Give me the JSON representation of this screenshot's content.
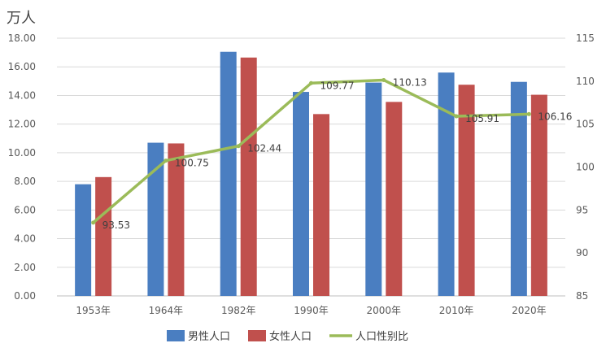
{
  "chart_data": {
    "type": "bar",
    "title": "",
    "unit_label": "万人",
    "categories": [
      "1953年",
      "1964年",
      "1982年",
      "1990年",
      "2000年",
      "2010年",
      "2020年"
    ],
    "series": [
      {
        "name": "男性人口",
        "kind": "bar",
        "axis": "left",
        "color": "#4a7ec1",
        "values": [
          7.8,
          10.7,
          17.05,
          14.25,
          14.9,
          15.6,
          14.95
        ]
      },
      {
        "name": "女性人口",
        "kind": "bar",
        "axis": "left",
        "color": "#c0504d",
        "values": [
          8.3,
          10.65,
          16.65,
          12.7,
          13.55,
          14.75,
          14.05
        ]
      },
      {
        "name": "人口性别比",
        "kind": "line",
        "axis": "right",
        "color": "#9bbb59",
        "values": [
          93.53,
          100.75,
          102.44,
          109.77,
          110.13,
          105.91,
          106.16
        ],
        "labels": [
          "93.53",
          "100.75",
          "102.44",
          "109.77",
          "110.13",
          "105.91",
          "106.16"
        ]
      }
    ],
    "y_left": {
      "min": 0,
      "max": 18,
      "step": 2,
      "ticks": [
        "0.00",
        "2.00",
        "4.00",
        "6.00",
        "8.00",
        "10.00",
        "12.00",
        "14.00",
        "16.00",
        "18.00"
      ]
    },
    "y_right": {
      "min": 85,
      "max": 115,
      "step": 5,
      "ticks": [
        "85",
        "90",
        "95",
        "100",
        "105",
        "110",
        "115"
      ]
    },
    "grid": true,
    "legend_position": "bottom"
  }
}
